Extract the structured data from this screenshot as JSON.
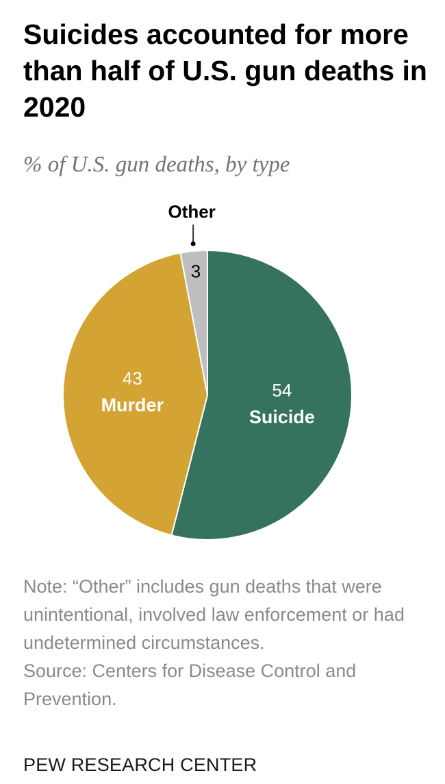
{
  "header": {
    "title": "Suicides accounted for more than half of U.S. gun deaths in 2020",
    "subtitle": "% of U.S. gun deaths, by type"
  },
  "chart_data": {
    "type": "pie",
    "title": "Suicides accounted for more than half of U.S. gun deaths in 2020",
    "subtitle": "% of U.S. gun deaths, by type",
    "slices": [
      {
        "label": "Suicide",
        "value": 54,
        "color": "#36735F",
        "label_color": "#ffffff"
      },
      {
        "label": "Murder",
        "value": 43,
        "color": "#D3A334",
        "label_color": "#ffffff"
      },
      {
        "label": "Other",
        "value": 3,
        "color": "#BEBEBE",
        "label_color": "#000000"
      }
    ],
    "start_angle_deg": 0,
    "direction": "clockwise"
  },
  "footer": {
    "note": "Note: “Other” includes gun deaths that were unintentional, involved law enforcement or had undetermined circumstances.",
    "source": "Source: Centers for Disease Control and Prevention.",
    "brand": "PEW RESEARCH CENTER"
  }
}
